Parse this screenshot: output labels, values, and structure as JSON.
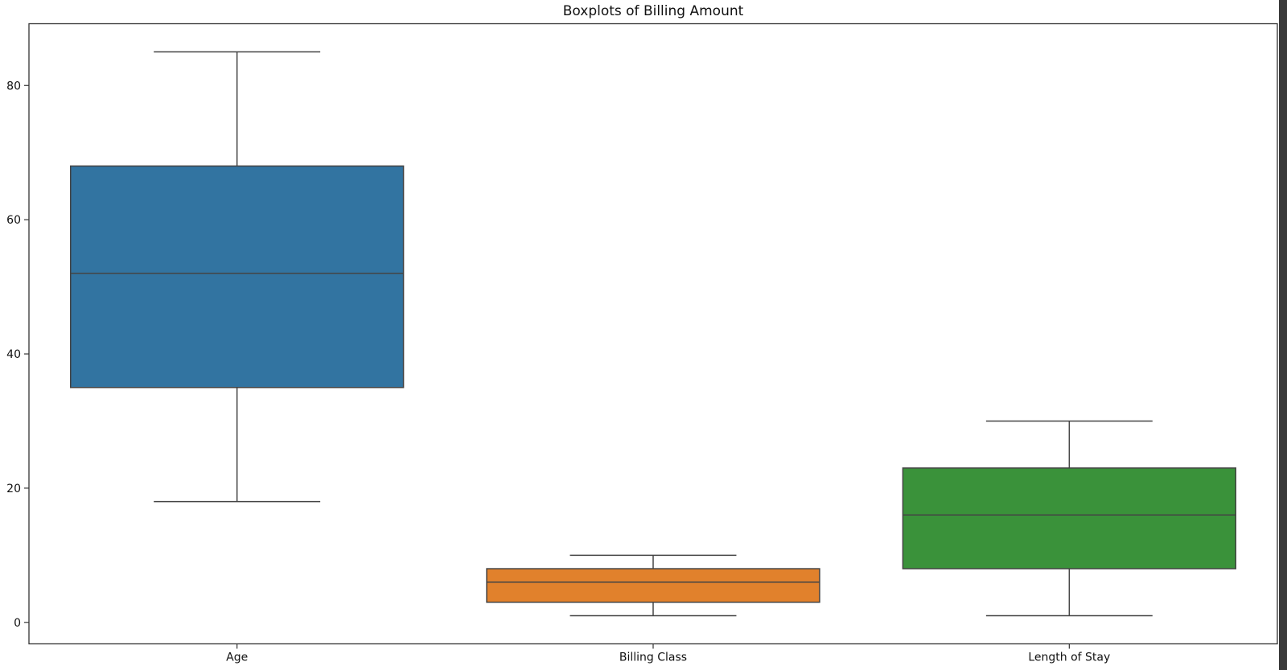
{
  "chart_data": {
    "type": "box",
    "title": "Boxplots of Billing Amount",
    "xlabel": "",
    "ylabel": "",
    "ylim": [
      -3.2,
      89.2
    ],
    "yticks": [
      0,
      20,
      40,
      60,
      80
    ],
    "grid": false,
    "categories": [
      "Age",
      "Billing Class",
      "Length of Stay"
    ],
    "boxes": [
      {
        "category": "Age",
        "whislo": 18,
        "q1": 35,
        "med": 52,
        "q3": 68,
        "whishi": 85,
        "color": "#3274a1"
      },
      {
        "category": "Billing Class",
        "whislo": 1,
        "q1": 3,
        "med": 6,
        "q3": 8,
        "whishi": 10,
        "color": "#e1812c"
      },
      {
        "category": "Length of Stay",
        "whislo": 1,
        "q1": 8,
        "med": 16,
        "q3": 23,
        "whishi": 30,
        "color": "#3a923a"
      }
    ]
  }
}
